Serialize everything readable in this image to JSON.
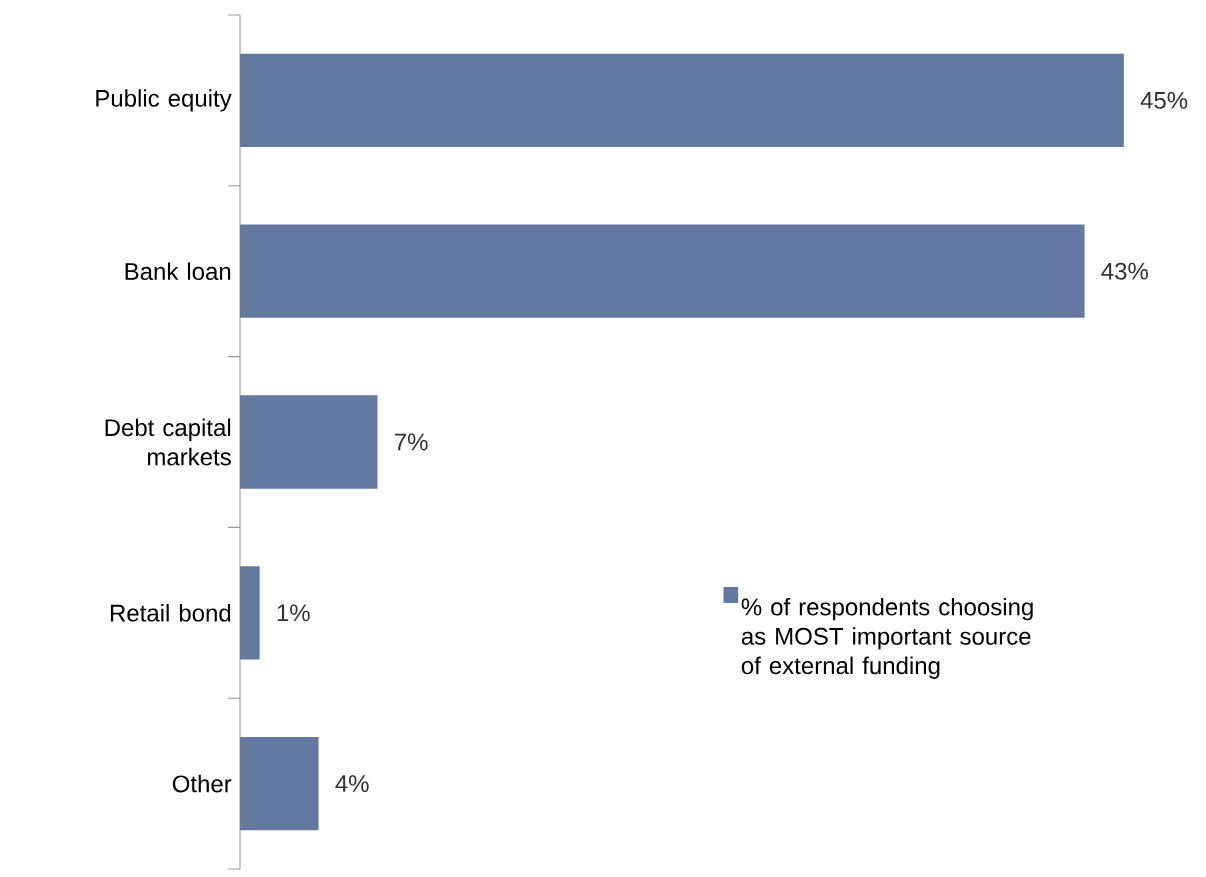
{
  "chart_data": {
    "type": "bar",
    "orientation": "horizontal",
    "categories": [
      "Public equity",
      "Bank loan",
      "Debt capital markets",
      "Retail bond",
      "Other"
    ],
    "series": [
      {
        "name": "% of respondents choosing as MOST important source of external funding",
        "color": "#6478a0",
        "values": [
          45,
          43,
          7,
          1,
          4
        ],
        "value_labels": [
          "45%",
          "43%",
          "7%",
          "1%",
          "4%"
        ]
      }
    ],
    "legend": "right"
  }
}
